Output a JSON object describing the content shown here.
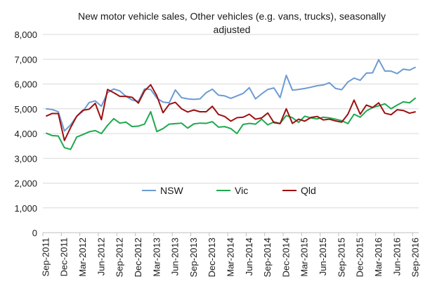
{
  "chart_data": {
    "type": "line",
    "title_lines": [
      "New motor vehicle sales, Other vehicles (e.g. vans, trucks), seasonally",
      "adjusted"
    ],
    "xlabel": "",
    "ylabel": "",
    "ylim": [
      0,
      8000
    ],
    "yticks": [
      "0",
      "1,000",
      "2,000",
      "3,000",
      "4,000",
      "5,000",
      "6,000",
      "7,000",
      "8,000"
    ],
    "ytick_values": [
      0,
      1000,
      2000,
      3000,
      4000,
      5000,
      6000,
      7000,
      8000
    ],
    "grid": true,
    "legend_position": "upper-right-of-plot",
    "x_month_labels": [
      "Sep-2011",
      "Dec-2011",
      "Mar-2012",
      "Jun-2012",
      "Sep-2012",
      "Dec-2012",
      "Mar-2013",
      "Jun-2013",
      "Sep-2013",
      "Dec-2013",
      "Mar-2014",
      "Jun-2014",
      "Sep-2014",
      "Dec-2014",
      "Mar-2015",
      "Jun-2015",
      "Sep-2015",
      "Dec-2015",
      "Mar-2016",
      "Jun-2016",
      "Sep-2016"
    ],
    "series": [
      {
        "name": "NSW",
        "color": "#6c9bd2",
        "values": [
          5000,
          4970,
          4880,
          4100,
          4350,
          4700,
          4900,
          5250,
          5320,
          5100,
          5650,
          5800,
          5720,
          5500,
          5350,
          5300,
          5800,
          5780,
          5430,
          5270,
          5240,
          5760,
          5450,
          5400,
          5380,
          5400,
          5650,
          5790,
          5550,
          5520,
          5420,
          5520,
          5620,
          5850,
          5400,
          5600,
          5780,
          5840,
          5450,
          6350,
          5750,
          5780,
          5820,
          5870,
          5930,
          5960,
          6050,
          5820,
          5770,
          6080,
          6240,
          6150,
          6440,
          6450,
          6980,
          6520,
          6520,
          6420,
          6600,
          6560,
          6680
        ]
      },
      {
        "name": "Vic",
        "color": "#1fa84f",
        "values": [
          4020,
          3920,
          3900,
          3430,
          3360,
          3860,
          3960,
          4070,
          4120,
          4000,
          4330,
          4600,
          4420,
          4460,
          4280,
          4300,
          4380,
          4880,
          4080,
          4200,
          4380,
          4400,
          4420,
          4220,
          4390,
          4420,
          4410,
          4480,
          4260,
          4280,
          4200,
          4000,
          4370,
          4410,
          4380,
          4580,
          4350,
          4470,
          4410,
          4730,
          4640,
          4450,
          4700,
          4630,
          4590,
          4660,
          4630,
          4580,
          4520,
          4400,
          4780,
          4660,
          4910,
          5050,
          5120,
          5200,
          5000,
          5150,
          5280,
          5240,
          5440
        ]
      },
      {
        "name": "Qld",
        "color": "#9c1010",
        "values": [
          4700,
          4810,
          4810,
          3720,
          4240,
          4700,
          4940,
          4980,
          5220,
          4560,
          5780,
          5650,
          5500,
          5500,
          5460,
          5230,
          5720,
          5970,
          5520,
          4840,
          5180,
          5260,
          5000,
          4870,
          4950,
          4880,
          4880,
          5100,
          4770,
          4690,
          4500,
          4640,
          4660,
          4780,
          4580,
          4630,
          4830,
          4440,
          4400,
          5000,
          4410,
          4580,
          4500,
          4650,
          4690,
          4550,
          4580,
          4510,
          4460,
          4780,
          5350,
          4780,
          5150,
          5050,
          5240,
          4820,
          4760,
          4960,
          4930,
          4820,
          4880
        ]
      }
    ]
  }
}
